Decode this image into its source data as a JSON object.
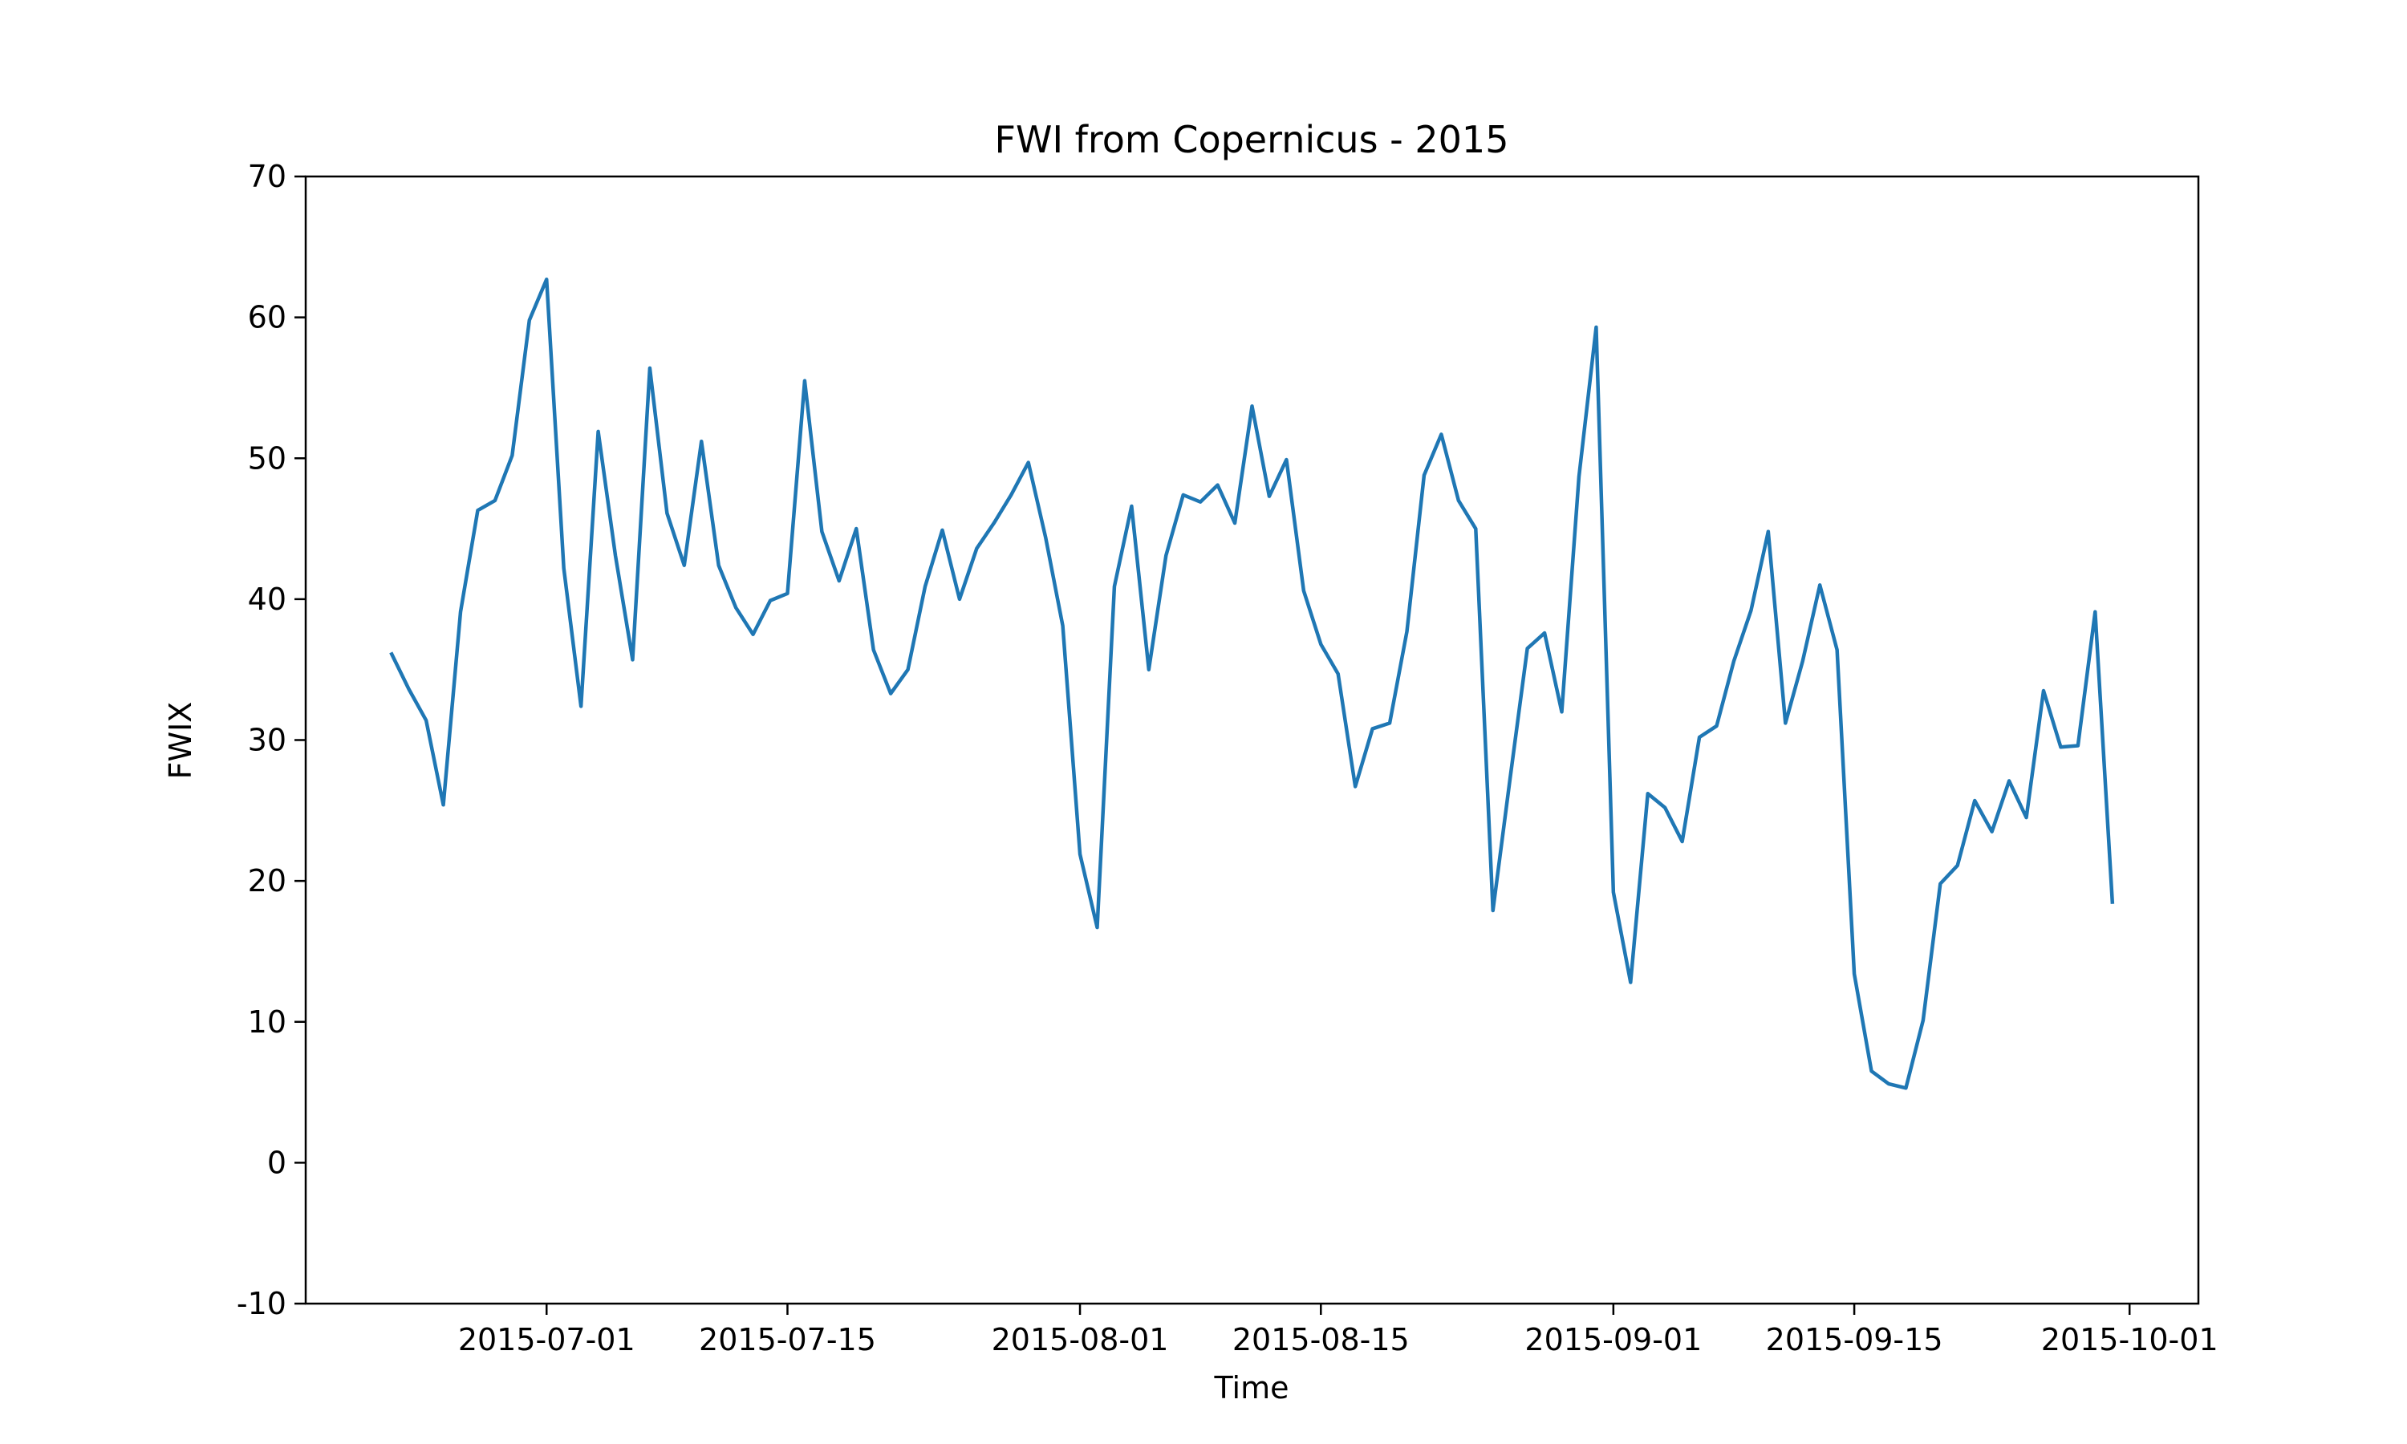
{
  "chart_data": {
    "type": "line",
    "title": "FWI from Copernicus - 2015",
    "x_label": "Time",
    "y_label": "FWIX",
    "x": [
      "2015-06-22",
      "2015-06-23",
      "2015-06-24",
      "2015-06-25",
      "2015-06-26",
      "2015-06-27",
      "2015-06-28",
      "2015-06-29",
      "2015-06-30",
      "2015-07-01",
      "2015-07-02",
      "2015-07-03",
      "2015-07-04",
      "2015-07-05",
      "2015-07-06",
      "2015-07-07",
      "2015-07-08",
      "2015-07-09",
      "2015-07-10",
      "2015-07-11",
      "2015-07-12",
      "2015-07-13",
      "2015-07-14",
      "2015-07-15",
      "2015-07-16",
      "2015-07-17",
      "2015-07-18",
      "2015-07-19",
      "2015-07-20",
      "2015-07-21",
      "2015-07-22",
      "2015-07-23",
      "2015-07-24",
      "2015-07-25",
      "2015-07-26",
      "2015-07-27",
      "2015-07-28",
      "2015-07-29",
      "2015-07-30",
      "2015-07-31",
      "2015-08-01",
      "2015-08-02",
      "2015-08-03",
      "2015-08-04",
      "2015-08-05",
      "2015-08-06",
      "2015-08-07",
      "2015-08-08",
      "2015-08-09",
      "2015-08-10",
      "2015-08-11",
      "2015-08-12",
      "2015-08-13",
      "2015-08-14",
      "2015-08-15",
      "2015-08-16",
      "2015-08-17",
      "2015-08-18",
      "2015-08-19",
      "2015-08-20",
      "2015-08-21",
      "2015-08-22",
      "2015-08-23",
      "2015-08-24",
      "2015-08-25",
      "2015-08-26",
      "2015-08-27",
      "2015-08-28",
      "2015-08-29",
      "2015-08-30",
      "2015-08-31",
      "2015-09-01",
      "2015-09-02",
      "2015-09-03",
      "2015-09-04",
      "2015-09-05",
      "2015-09-06",
      "2015-09-07",
      "2015-09-08",
      "2015-09-09",
      "2015-09-10",
      "2015-09-11",
      "2015-09-12",
      "2015-09-13",
      "2015-09-14",
      "2015-09-15",
      "2015-09-16",
      "2015-09-17",
      "2015-09-18",
      "2015-09-19",
      "2015-09-20",
      "2015-09-21",
      "2015-09-22",
      "2015-09-23",
      "2015-09-24",
      "2015-09-25",
      "2015-09-26",
      "2015-09-27",
      "2015-09-28",
      "2015-09-29",
      "2015-09-30"
    ],
    "series": [
      {
        "name": "FWIX",
        "color": "#1f77b4",
        "values": [
          36.1,
          33.6,
          31.4,
          25.4,
          39.1,
          46.3,
          47.0,
          50.2,
          59.8,
          62.7,
          42.2,
          32.4,
          51.9,
          43.1,
          35.7,
          56.4,
          46.1,
          42.4,
          51.2,
          42.4,
          39.4,
          37.5,
          39.9,
          40.4,
          55.5,
          44.8,
          41.3,
          45.0,
          36.4,
          33.3,
          35.0,
          40.9,
          44.9,
          40.0,
          43.6,
          45.4,
          47.4,
          49.7,
          44.4,
          38.1,
          21.9,
          16.7,
          40.9,
          46.6,
          35.0,
          43.1,
          47.4,
          46.9,
          48.1,
          45.4,
          53.7,
          47.3,
          49.9,
          40.6,
          36.8,
          34.7,
          26.7,
          30.8,
          31.2,
          37.7,
          48.8,
          51.7,
          47.0,
          45.0,
          17.9,
          27.3,
          36.5,
          37.6,
          32.0,
          48.7,
          59.3,
          19.2,
          12.8,
          26.2,
          25.2,
          22.8,
          30.2,
          31.0,
          35.6,
          39.2,
          44.8,
          31.2,
          35.6,
          41.0,
          36.4,
          13.4,
          6.5,
          5.6,
          5.3,
          10.1,
          19.8,
          21.1,
          25.7,
          23.5,
          27.1,
          24.5,
          33.5,
          29.5,
          29.6,
          39.1,
          18.5
        ]
      }
    ],
    "xlim": [
      "2015-06-17",
      "2015-10-05"
    ],
    "xticks": [
      "2015-07-01",
      "2015-07-15",
      "2015-08-01",
      "2015-08-15",
      "2015-09-01",
      "2015-09-15",
      "2015-10-01"
    ],
    "ylim": [
      -10,
      70
    ],
    "yticks": [
      -10,
      0,
      10,
      20,
      30,
      40,
      50,
      60,
      70
    ],
    "grid": false
  }
}
